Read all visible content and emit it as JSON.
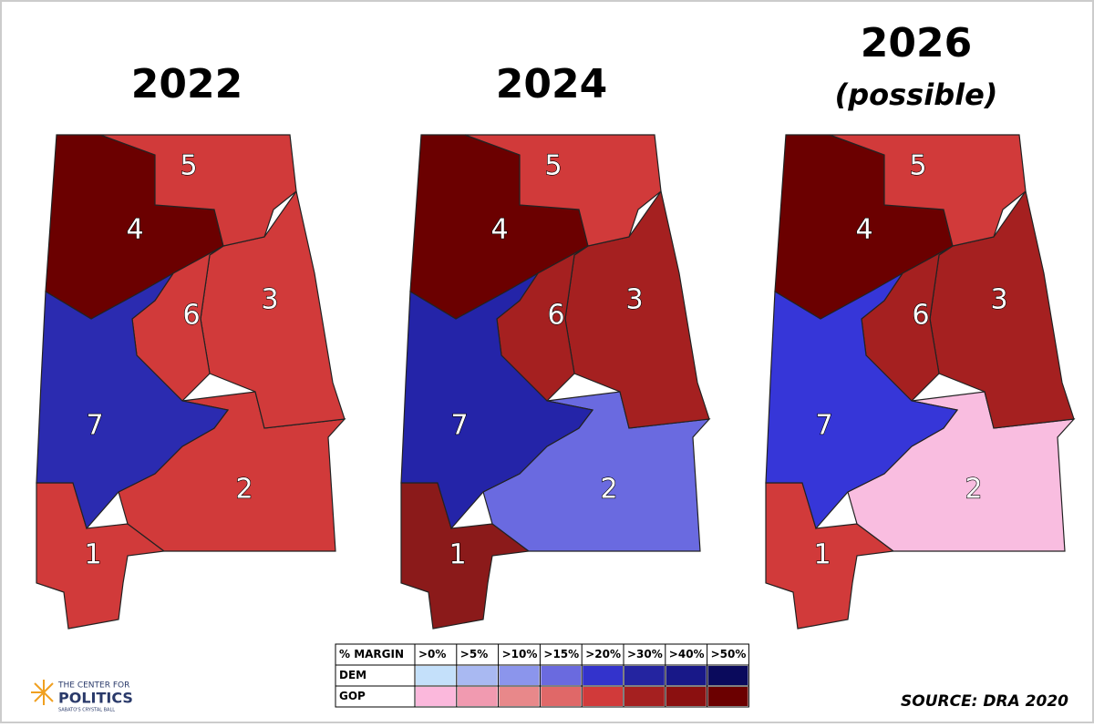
{
  "maps": [
    {
      "title": "2022",
      "districts": [
        {
          "label": "1",
          "color": "#d13a3a"
        },
        {
          "label": "2",
          "color": "#d13a3a"
        },
        {
          "label": "3",
          "color": "#d13a3a"
        },
        {
          "label": "4",
          "color": "#6b0000"
        },
        {
          "label": "5",
          "color": "#d13a3a"
        },
        {
          "label": "6",
          "color": "#d13a3a"
        },
        {
          "label": "7",
          "color": "#2b2bb0"
        }
      ]
    },
    {
      "title": "2024",
      "districts": [
        {
          "label": "1",
          "color": "#8b1a1a"
        },
        {
          "label": "2",
          "color": "#6a6ae0"
        },
        {
          "label": "3",
          "color": "#a52020"
        },
        {
          "label": "4",
          "color": "#6b0000"
        },
        {
          "label": "5",
          "color": "#d13a3a"
        },
        {
          "label": "6",
          "color": "#a52020"
        },
        {
          "label": "7",
          "color": "#2424a8"
        }
      ]
    },
    {
      "title": "2026",
      "subtitle": "(possible)",
      "districts": [
        {
          "label": "1",
          "color": "#d13a3a"
        },
        {
          "label": "2",
          "color": "#f9bde0"
        },
        {
          "label": "3",
          "color": "#a52020"
        },
        {
          "label": "4",
          "color": "#6b0000"
        },
        {
          "label": "5",
          "color": "#d13a3a"
        },
        {
          "label": "6",
          "color": "#a52020"
        },
        {
          "label": "7",
          "color": "#3636d8"
        }
      ]
    }
  ],
  "legend": {
    "header": "% MARGIN",
    "columns": [
      ">0%",
      ">5%",
      ">10%",
      ">15%",
      ">20%",
      ">30%",
      ">40%",
      ">50%"
    ],
    "rows": [
      {
        "name": "DEM",
        "colors": [
          "#c4e0fa",
          "#a9b9f2",
          "#8b95ec",
          "#6a6adf",
          "#3333cc",
          "#2424a0",
          "#181888",
          "#0a0a5c"
        ]
      },
      {
        "name": "GOP",
        "colors": [
          "#fbb8dc",
          "#f19ab0",
          "#e8888a",
          "#e06868",
          "#d13a3a",
          "#a52020",
          "#8b1010",
          "#6b0000"
        ]
      }
    ]
  },
  "logo": {
    "line1": "THE CENTER FOR",
    "line2": "POLITICS",
    "line3": "SABATO'S CRYSTAL BALL"
  },
  "source": "SOURCE: DRA 2020"
}
